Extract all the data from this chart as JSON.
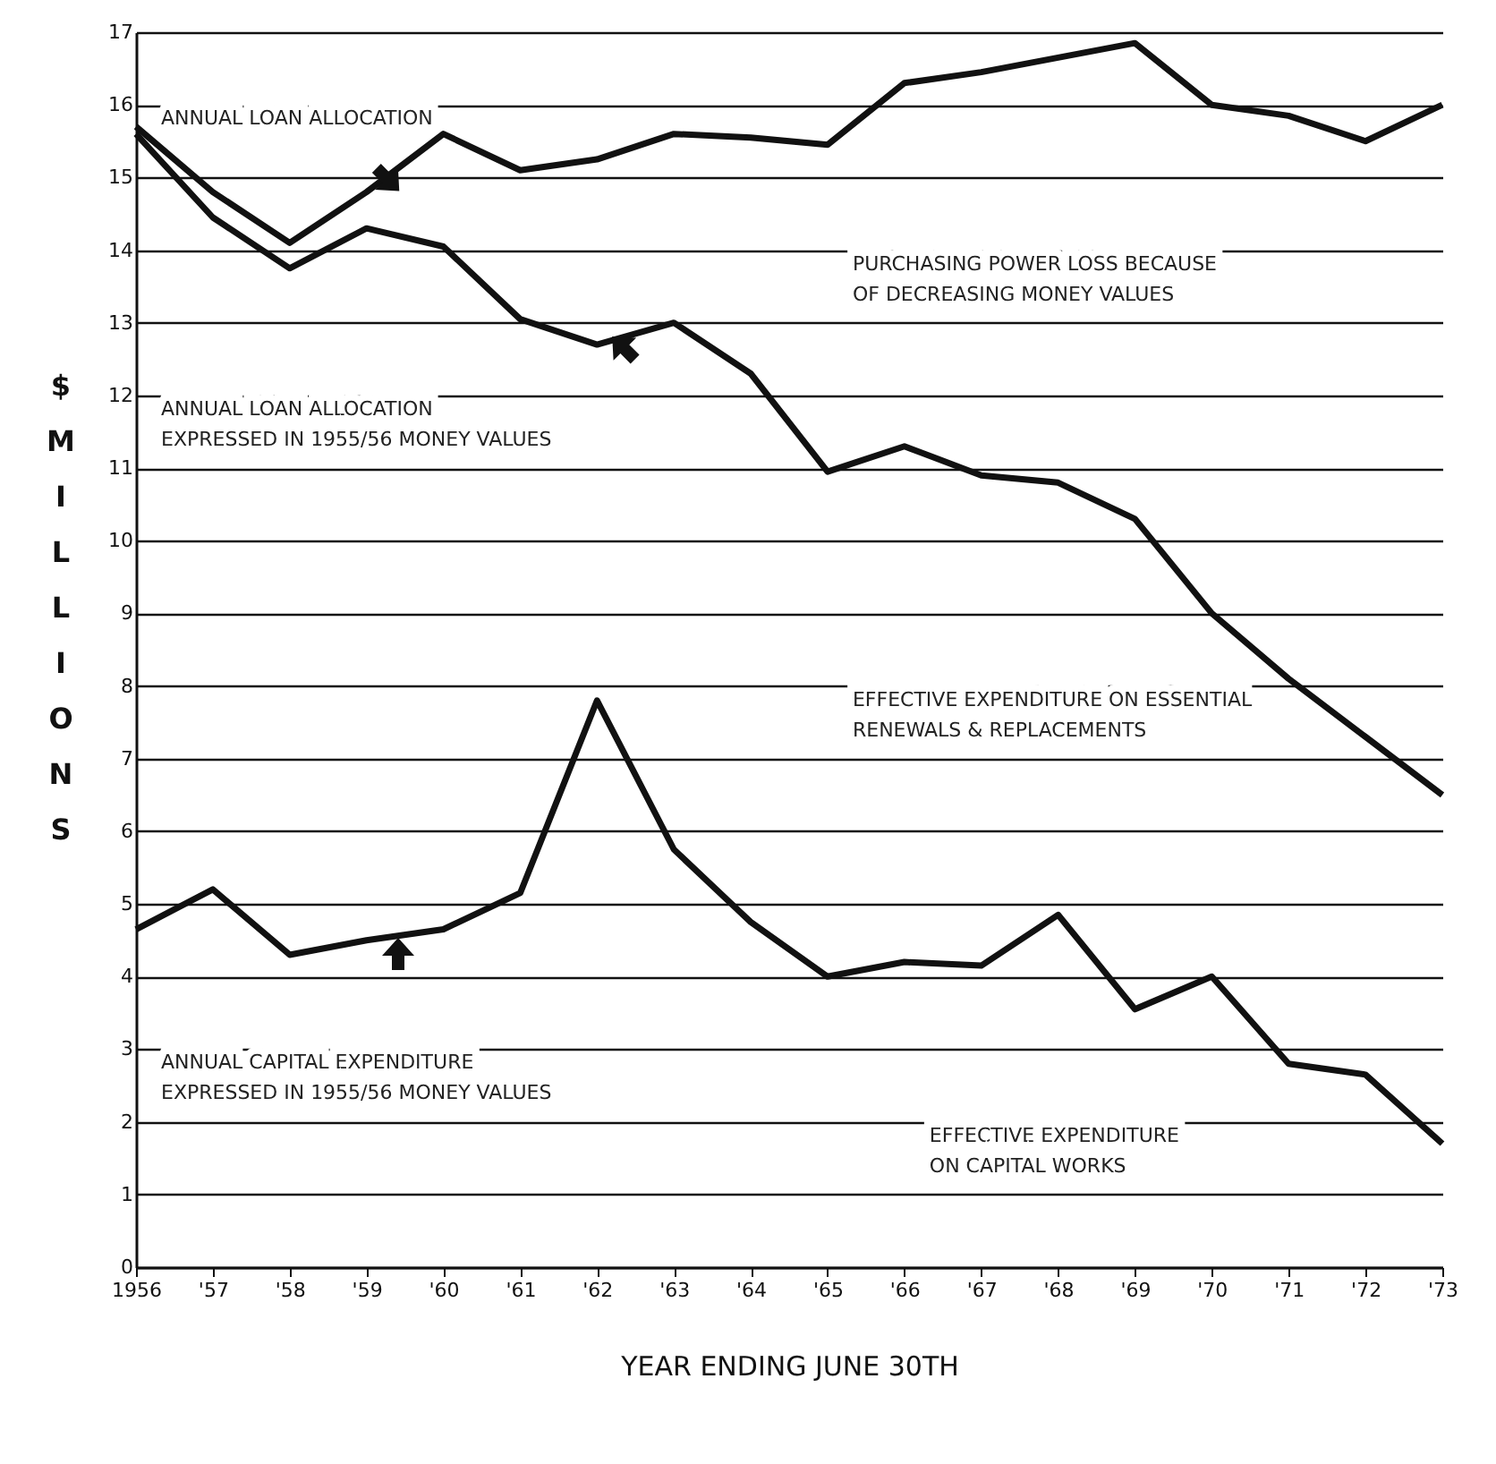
{
  "chart_data": {
    "type": "line",
    "categories": [
      "1956",
      "'57",
      "'58",
      "'59",
      "'60",
      "'61",
      "'62",
      "'63",
      "'64",
      "'65",
      "'66",
      "'67",
      "'68",
      "'69",
      "'70",
      "'71",
      "'72",
      "'73"
    ],
    "series": [
      {
        "color": "#111111",
        "values": [
          15.7,
          14.8,
          14.1,
          14.8,
          15.6,
          15.1,
          15.25,
          15.6,
          15.55,
          15.45,
          16.3,
          16.45,
          16.65,
          16.85,
          16.0,
          15.85,
          15.5,
          16.0
        ]
      },
      {
        "color": "#111111",
        "values": [
          15.6,
          14.45,
          13.75,
          14.3,
          14.05,
          13.05,
          12.7,
          13.0,
          12.3,
          10.95,
          11.3,
          10.9,
          10.8,
          10.3,
          9.0,
          8.1,
          7.3,
          6.5
        ]
      },
      {
        "color": "#111111",
        "values": [
          4.65,
          5.2,
          4.3,
          4.5,
          4.65,
          5.15,
          7.8,
          5.75,
          4.75,
          4.0,
          4.2,
          4.15,
          4.85,
          3.55,
          4.0,
          2.8,
          2.65,
          1.7
        ]
      }
    ],
    "xlabel": "YEAR ENDING JUNE 30TH",
    "ylabel": "$ MILLIONS",
    "ylim": [
      0,
      17
    ],
    "yticks": [
      0,
      1,
      2,
      3,
      4,
      5,
      6,
      7,
      8,
      9,
      10,
      11,
      12,
      13,
      14,
      15,
      16,
      17
    ],
    "grid": "y",
    "legend": false,
    "marker": "none",
    "line_style": "solid",
    "annotations": [
      "ANNUAL LOAN ALLOCATION",
      "PURCHASING POWER LOSS BECAUSE\nOF DECREASING MONEY VALUES",
      "ANNUAL LOAN ALLOCATION\nEXPRESSED IN 1955/56 MONEY VALUES",
      "EFFECTIVE EXPENDITURE ON ESSENTIAL\nRENEWALS & REPLACEMENTS",
      "ANNUAL CAPITAL EXPENDITURE\nEXPRESSED IN 1955/56 MONEY VALUES",
      "EFFECTIVE EXPENDITURE\nON CAPITAL WORKS"
    ]
  }
}
